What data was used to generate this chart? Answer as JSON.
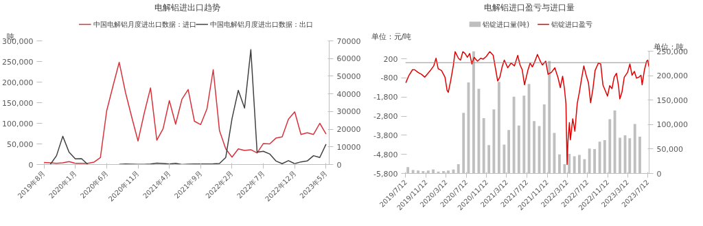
{
  "chart_data": [
    {
      "type": "line",
      "title": "电解铝进出口趋势",
      "ylabel": "吨",
      "legend": "top",
      "grid": false,
      "categories": [
        "2019年8月",
        null,
        null,
        null,
        null,
        "2020年1月",
        null,
        null,
        null,
        null,
        "2020年6月",
        null,
        null,
        null,
        null,
        "2020年11月",
        null,
        null,
        null,
        null,
        "2021年4月",
        null,
        null,
        null,
        null,
        "2021年9月",
        null,
        null,
        null,
        null,
        "2022年2月",
        null,
        null,
        null,
        null,
        "2022年7月",
        null,
        null,
        null,
        null,
        "2022年12月",
        null,
        null,
        null,
        null,
        "2023年5月"
      ],
      "ylim": [
        0,
        300000
      ],
      "yticks": [
        0,
        {
          "value": 50000,
          "label": "50,000"
        },
        {
          "value": 100000,
          "label": "100,000"
        },
        {
          "value": 150000,
          "label": "150,000"
        },
        {
          "value": 200000,
          "label": "200,000"
        },
        {
          "value": 250000,
          "label": "250,000"
        },
        {
          "value": 300000,
          "label": "300,000"
        }
      ],
      "y2lim": [
        0,
        70000
      ],
      "y2ticks": [
        0,
        10000,
        20000,
        30000,
        40000,
        50000,
        60000,
        70000
      ],
      "series": [
        {
          "name": "中国电解铝月度进出口数据：进口",
          "color": "#d9313b",
          "values": [
            5000,
            4000,
            3000,
            4000,
            7000,
            3000,
            3000,
            3000,
            6000,
            17000,
            130000,
            190000,
            248000,
            175000,
            115000,
            57000,
            125000,
            186000,
            59000,
            87000,
            155000,
            98000,
            158000,
            182000,
            105000,
            97000,
            135000,
            230000,
            82000,
            38000,
            18000,
            38000,
            34000,
            36000,
            28000,
            51000,
            50000,
            64000,
            67000,
            110000,
            128000,
            73000,
            77000,
            73000,
            100000,
            74000
          ]
        },
        {
          "name": "中国电解铝月度进出口数据：出口",
          "color": "#404040",
          "axis": "y2",
          "values": [
            null,
            0,
            5000,
            16000,
            7000,
            3200,
            3300,
            0,
            null,
            null,
            null,
            null,
            100,
            300,
            200,
            100,
            100,
            300,
            800,
            600,
            300,
            700,
            0,
            200,
            300,
            300,
            300,
            400,
            600,
            4000,
            26000,
            42000,
            32000,
            65000,
            7000,
            7500,
            6000,
            2000,
            500,
            2200,
            500,
            1500,
            2000,
            5000,
            4000,
            11500
          ]
        }
      ]
    },
    {
      "type": "line",
      "title": "电解铝进口盈亏与进口量",
      "ylabel": "单位：元/吨",
      "y2label": "单位：吨",
      "legend": "top",
      "grid": false,
      "xlim": [
        "2019-07-10",
        "2023-07-20"
      ],
      "xticks": [
        {
          "value": "2019-07-12",
          "label": "2019/7/12"
        },
        {
          "value": "2019-11-12",
          "label": "2019/11/12"
        },
        {
          "value": "2020-03-12",
          "label": "2020/3/12"
        },
        {
          "value": "2020-07-12",
          "label": "2020/7/12"
        },
        {
          "value": "2020-11-12",
          "label": "2020/11/12"
        },
        {
          "value": "2021-03-12",
          "label": "2021/3/12"
        },
        {
          "value": "2021-07-12",
          "label": "2021/7/12"
        },
        {
          "value": "2021-11-12",
          "label": "2021/11/12"
        },
        {
          "value": "2022-03-12",
          "label": "2022/3/12"
        },
        {
          "value": "2022-07-12",
          "label": "2022/7/12"
        },
        {
          "value": "2022-11-12",
          "label": "2022/11/12"
        },
        {
          "value": "2023-03-12",
          "label": "2023/3/12"
        },
        {
          "value": "2023-07-12",
          "label": "2023/7/12"
        }
      ],
      "ylim": [
        -5800,
        600
      ],
      "yticks": [
        {
          "value": -5800,
          "label": "-5,800"
        },
        {
          "value": -4800,
          "label": "-4,800"
        },
        {
          "value": -3800,
          "label": "-3,800"
        },
        {
          "value": -2800,
          "label": "-2,800"
        },
        {
          "value": -1800,
          "label": "-1,800"
        },
        -800,
        200
      ],
      "y2lim": [
        0,
        250000
      ],
      "y2ticks": [
        0,
        {
          "value": 50000,
          "label": "50,000"
        },
        {
          "value": 100000,
          "label": "100,000"
        },
        {
          "value": 150000,
          "label": "150,000"
        },
        {
          "value": 200000,
          "label": "200,000"
        },
        {
          "value": 250000,
          "label": "250,000"
        }
      ],
      "ref_lines": [
        {
          "axis": "y",
          "value": 0,
          "color": "#909090"
        }
      ],
      "series": [
        {
          "name": "铝锭进口量(吨)",
          "type": "bar",
          "axis": "y2",
          "color": "#bfbfbf",
          "x": [
            "2019-07-25",
            "2019-08-25",
            "2019-09-25",
            "2019-10-25",
            "2019-11-25",
            "2019-12-25",
            "2020-01-25",
            "2020-02-25",
            "2020-03-25",
            "2020-04-25",
            "2020-05-25",
            "2020-06-25",
            "2020-07-25",
            "2020-08-25",
            "2020-09-25",
            "2020-10-25",
            "2020-11-25",
            "2020-12-25",
            "2021-01-25",
            "2021-02-25",
            "2021-03-25",
            "2021-04-25",
            "2021-05-25",
            "2021-06-25",
            "2021-07-25",
            "2021-08-25",
            "2021-09-25",
            "2021-10-25",
            "2021-11-25",
            "2021-12-25",
            "2022-01-25",
            "2022-02-25",
            "2022-03-25",
            "2022-04-25",
            "2022-05-25",
            "2022-06-25",
            "2022-07-25",
            "2022-08-25",
            "2022-09-25",
            "2022-10-25",
            "2022-11-25",
            "2022-12-25",
            "2023-01-25",
            "2023-02-25",
            "2023-03-25",
            "2023-04-25",
            "2023-05-25"
          ],
          "values": [
            13000,
            7000,
            6000,
            5000,
            6000,
            8000,
            4000,
            5000,
            6000,
            8000,
            19000,
            124000,
            186000,
            250000,
            173000,
            113000,
            58000,
            131000,
            187000,
            59000,
            89000,
            157000,
            98000,
            159000,
            183000,
            107000,
            97000,
            141000,
            230000,
            83000,
            39000,
            19000,
            40000,
            35000,
            38000,
            29000,
            51000,
            50000,
            65000,
            68000,
            111000,
            129000,
            73000,
            78000,
            72000,
            101000,
            75000
          ]
        },
        {
          "name": "铝锭进口盈亏",
          "type": "line",
          "color": "#e00000",
          "x": [
            "2019-07-12",
            "2019-08-01",
            "2019-08-22",
            "2019-09-04",
            "2019-09-24",
            "2019-10-15",
            "2019-11-04",
            "2019-11-18",
            "2019-12-08",
            "2019-12-28",
            "2020-01-11",
            "2020-01-24",
            "2020-02-13",
            "2020-03-05",
            "2020-03-18",
            "2020-03-25",
            "2020-04-08",
            "2020-04-24",
            "2020-05-05",
            "2020-05-25",
            "2020-06-07",
            "2020-06-21",
            "2020-07-04",
            "2020-07-18",
            "2020-08-01",
            "2020-08-14",
            "2020-08-28",
            "2020-09-17",
            "2020-10-07",
            "2020-10-21",
            "2020-11-10",
            "2020-11-30",
            "2020-12-21",
            "2021-01-03",
            "2021-01-17",
            "2021-01-30",
            "2021-02-13",
            "2021-02-26",
            "2021-03-19",
            "2021-04-08",
            "2021-04-28",
            "2021-05-18",
            "2021-06-01",
            "2021-06-14",
            "2021-06-28",
            "2021-07-18",
            "2021-08-01",
            "2021-08-14",
            "2021-08-28",
            "2021-09-14",
            "2021-10-01",
            "2021-10-14",
            "2021-11-03",
            "2021-11-17",
            "2021-12-07",
            "2021-12-28",
            "2022-01-17",
            "2022-01-30",
            "2022-02-13",
            "2022-02-24",
            "2022-03-05",
            "2022-03-12",
            "2022-03-17",
            "2022-03-26",
            "2022-04-01",
            "2022-04-15",
            "2022-04-28",
            "2022-05-12",
            "2022-05-25",
            "2022-06-08",
            "2022-06-21",
            "2022-07-05",
            "2022-07-19",
            "2022-08-01",
            "2022-08-15",
            "2022-08-28",
            "2022-09-17",
            "2022-10-01",
            "2022-10-14",
            "2022-10-28",
            "2022-11-11",
            "2022-11-24",
            "2022-12-08",
            "2022-12-21",
            "2023-01-04",
            "2023-01-17",
            "2023-01-24",
            "2023-02-06",
            "2023-02-20",
            "2023-03-12",
            "2023-03-26",
            "2023-04-08",
            "2023-04-22",
            "2023-05-05",
            "2023-05-19",
            "2023-06-01",
            "2023-06-08",
            "2023-06-22",
            "2023-07-05",
            "2023-07-12",
            "2023-07-19"
          ],
          "values": [
            -1060,
            -660,
            -370,
            -370,
            -510,
            -610,
            -760,
            -610,
            -410,
            -170,
            230,
            -320,
            -410,
            -760,
            -1460,
            -1550,
            -960,
            -170,
            580,
            230,
            130,
            580,
            480,
            280,
            480,
            -70,
            280,
            80,
            230,
            180,
            330,
            580,
            380,
            -270,
            -960,
            -760,
            -220,
            130,
            -270,
            -20,
            -170,
            380,
            -120,
            -370,
            -1160,
            -410,
            -20,
            -220,
            30,
            430,
            80,
            -120,
            80,
            -610,
            -510,
            -270,
            -810,
            -1310,
            -710,
            -1360,
            -2150,
            -5330,
            -4140,
            -3140,
            -4040,
            -2940,
            -3590,
            -2150,
            -1550,
            -810,
            -170,
            -660,
            -1060,
            -2100,
            -1360,
            -410,
            -20,
            -70,
            -1160,
            -1460,
            -1750,
            -1210,
            -1360,
            -760,
            -560,
            -1260,
            -1900,
            -1550,
            -760,
            -510,
            -70,
            -660,
            -460,
            -810,
            -760,
            -660,
            -1160,
            -370,
            80,
            130,
            -220
          ]
        }
      ]
    }
  ]
}
